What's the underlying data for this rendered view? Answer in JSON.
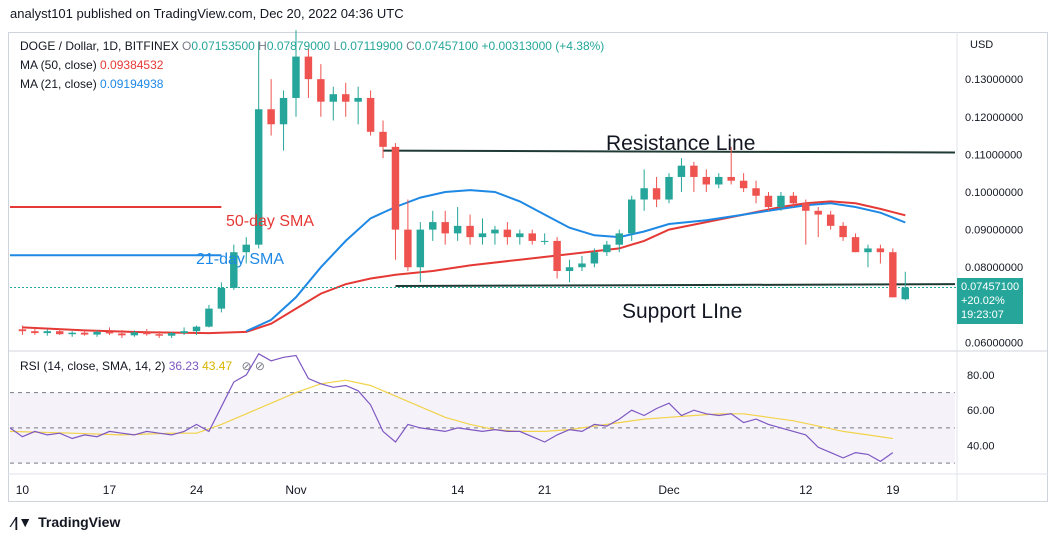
{
  "header": {
    "publish_line": "analyst101 published on TradingView.com, Dec 20, 2022 04:36 UTC"
  },
  "legend": {
    "symbol": "DOGE / Dollar, 1D, BITFINEX",
    "o_label": "O",
    "o_value": "0.07153500",
    "h_label": "H",
    "h_value": "0.07879000",
    "l_label": "L",
    "l_value": "0.07119900",
    "c_label": "C",
    "c_value": "0.07457100",
    "change": "+0.00313000 (+4.38%)",
    "ma50_label": "MA (50, close)",
    "ma50_value": "0.09384532",
    "ma21_label": "MA (21, close)",
    "ma21_value": "0.09194938"
  },
  "rsi_legend": {
    "label": "RSI (14, close, SMA, 14, 2)",
    "value": "36.23",
    "sma_value": "43.47"
  },
  "price_tag": {
    "price": "0.07457100",
    "change": "+20.02%",
    "countdown": "19:23:07"
  },
  "annotations": {
    "resistance": "Resistance Line",
    "support": "Support LIne",
    "sma50": "50-day SMA",
    "sma21": "21-day SMA"
  },
  "footer": {
    "brand": "TradingView"
  },
  "colors": {
    "up": "#26a69a",
    "down": "#ef5350",
    "ma50": "#e53935",
    "ma21": "#1e88e5",
    "rsi": "#7e57c2",
    "rsi_sma": "#f2d34b"
  },
  "chart_data": [
    {
      "type": "candlestick",
      "title": "DOGE / Dollar, 1D, BITFINEX",
      "currency_label": "USD",
      "y_ticks": [
        "0.13000000",
        "0.12000000",
        "0.11000000",
        "0.10000000",
        "0.09000000",
        "0.08000000",
        "0.06000000"
      ],
      "ylim": [
        0.058,
        0.142
      ],
      "x_ticks": [
        {
          "label": "10",
          "index": 0
        },
        {
          "label": "17",
          "index": 7
        },
        {
          "label": "24",
          "index": 14
        },
        {
          "label": "Nov",
          "index": 22
        },
        {
          "label": "14",
          "index": 35
        },
        {
          "label": "21",
          "index": 42
        },
        {
          "label": "Dec",
          "index": 52
        },
        {
          "label": "12",
          "index": 63
        },
        {
          "label": "19",
          "index": 70
        }
      ],
      "x_range": [
        -1,
        75
      ],
      "candles": [
        [
          0.0635,
          0.0645,
          0.062,
          0.063
        ],
        [
          0.063,
          0.0638,
          0.062,
          0.0625
        ],
        [
          0.0625,
          0.0635,
          0.0618,
          0.063
        ],
        [
          0.063,
          0.0636,
          0.062,
          0.0622
        ],
        [
          0.0622,
          0.063,
          0.0615,
          0.0626
        ],
        [
          0.0626,
          0.0633,
          0.0618,
          0.0621
        ],
        [
          0.0621,
          0.0632,
          0.0615,
          0.0628
        ],
        [
          0.0628,
          0.064,
          0.062,
          0.0624
        ],
        [
          0.0624,
          0.0633,
          0.0612,
          0.0619
        ],
        [
          0.0619,
          0.0632,
          0.0615,
          0.0627
        ],
        [
          0.0627,
          0.0636,
          0.0618,
          0.0622
        ],
        [
          0.0622,
          0.063,
          0.0612,
          0.0618
        ],
        [
          0.0618,
          0.0628,
          0.0612,
          0.0625
        ],
        [
          0.0625,
          0.064,
          0.062,
          0.063
        ],
        [
          0.063,
          0.0645,
          0.062,
          0.0642
        ],
        [
          0.0642,
          0.07,
          0.064,
          0.069
        ],
        [
          0.069,
          0.076,
          0.068,
          0.0745
        ],
        [
          0.0745,
          0.086,
          0.074,
          0.084
        ],
        [
          0.084,
          0.088,
          0.081,
          0.086
        ],
        [
          0.086,
          0.14,
          0.085,
          0.122
        ],
        [
          0.122,
          0.13,
          0.115,
          0.118
        ],
        [
          0.118,
          0.127,
          0.111,
          0.125
        ],
        [
          0.125,
          0.143,
          0.12,
          0.136
        ],
        [
          0.136,
          0.138,
          0.125,
          0.13
        ],
        [
          0.13,
          0.134,
          0.12,
          0.124
        ],
        [
          0.124,
          0.128,
          0.119,
          0.126
        ],
        [
          0.126,
          0.129,
          0.12,
          0.124
        ],
        [
          0.124,
          0.128,
          0.118,
          0.125
        ],
        [
          0.125,
          0.127,
          0.115,
          0.116
        ],
        [
          0.116,
          0.119,
          0.109,
          0.112
        ],
        [
          0.112,
          0.113,
          0.082,
          0.09
        ],
        [
          0.09,
          0.098,
          0.079,
          0.08
        ],
        [
          0.08,
          0.092,
          0.076,
          0.09
        ],
        [
          0.09,
          0.095,
          0.087,
          0.092
        ],
        [
          0.092,
          0.095,
          0.086,
          0.089
        ],
        [
          0.089,
          0.096,
          0.087,
          0.091
        ],
        [
          0.091,
          0.094,
          0.086,
          0.088
        ],
        [
          0.088,
          0.093,
          0.086,
          0.089
        ],
        [
          0.089,
          0.091,
          0.086,
          0.09
        ],
        [
          0.09,
          0.092,
          0.086,
          0.088
        ],
        [
          0.088,
          0.09,
          0.086,
          0.089
        ],
        [
          0.089,
          0.09,
          0.086,
          0.087
        ],
        [
          0.087,
          0.089,
          0.086,
          0.087
        ],
        [
          0.087,
          0.088,
          0.077,
          0.079
        ],
        [
          0.079,
          0.082,
          0.076,
          0.08
        ],
        [
          0.08,
          0.083,
          0.079,
          0.081
        ],
        [
          0.081,
          0.085,
          0.08,
          0.084
        ],
        [
          0.084,
          0.087,
          0.083,
          0.086
        ],
        [
          0.086,
          0.09,
          0.084,
          0.089
        ],
        [
          0.089,
          0.099,
          0.087,
          0.098
        ],
        [
          0.098,
          0.106,
          0.095,
          0.101
        ],
        [
          0.101,
          0.104,
          0.096,
          0.098
        ],
        [
          0.098,
          0.105,
          0.097,
          0.104
        ],
        [
          0.104,
          0.109,
          0.1,
          0.107
        ],
        [
          0.107,
          0.108,
          0.1,
          0.104
        ],
        [
          0.104,
          0.106,
          0.1,
          0.102
        ],
        [
          0.102,
          0.105,
          0.101,
          0.104
        ],
        [
          0.104,
          0.112,
          0.102,
          0.103
        ],
        [
          0.103,
          0.105,
          0.1,
          0.101
        ],
        [
          0.101,
          0.103,
          0.097,
          0.099
        ],
        [
          0.099,
          0.1,
          0.095,
          0.096
        ],
        [
          0.096,
          0.1,
          0.095,
          0.099
        ],
        [
          0.099,
          0.1,
          0.096,
          0.097
        ],
        [
          0.097,
          0.098,
          0.086,
          0.095
        ],
        [
          0.095,
          0.096,
          0.088,
          0.094
        ],
        [
          0.094,
          0.095,
          0.09,
          0.091
        ],
        [
          0.091,
          0.092,
          0.087,
          0.088
        ],
        [
          0.088,
          0.089,
          0.084,
          0.084
        ],
        [
          0.084,
          0.086,
          0.08,
          0.085
        ],
        [
          0.085,
          0.086,
          0.081,
          0.084
        ],
        [
          0.084,
          0.085,
          0.072,
          0.072
        ],
        [
          0.0715,
          0.0788,
          0.0712,
          0.0746
        ]
      ],
      "ma50": [
        [
          0,
          0.064
        ],
        [
          5,
          0.0632
        ],
        [
          10,
          0.0627
        ],
        [
          15,
          0.0625
        ],
        [
          18,
          0.0628
        ],
        [
          20,
          0.065
        ],
        [
          22,
          0.069
        ],
        [
          24,
          0.073
        ],
        [
          26,
          0.0755
        ],
        [
          28,
          0.077
        ],
        [
          30,
          0.078
        ],
        [
          33,
          0.079
        ],
        [
          36,
          0.0805
        ],
        [
          40,
          0.082
        ],
        [
          44,
          0.0835
        ],
        [
          48,
          0.085
        ],
        [
          50,
          0.087
        ],
        [
          52,
          0.09
        ],
        [
          55,
          0.092
        ],
        [
          58,
          0.094
        ],
        [
          61,
          0.096
        ],
        [
          63,
          0.097
        ],
        [
          65,
          0.0975
        ],
        [
          67,
          0.097
        ],
        [
          69,
          0.0955
        ],
        [
          71,
          0.0938
        ]
      ],
      "ma21": [
        [
          18,
          0.063
        ],
        [
          20,
          0.066
        ],
        [
          22,
          0.072
        ],
        [
          24,
          0.08
        ],
        [
          26,
          0.087
        ],
        [
          28,
          0.093
        ],
        [
          30,
          0.096
        ],
        [
          32,
          0.0985
        ],
        [
          34,
          0.1
        ],
        [
          36,
          0.1005
        ],
        [
          38,
          0.1
        ],
        [
          40,
          0.0975
        ],
        [
          42,
          0.094
        ],
        [
          44,
          0.0905
        ],
        [
          46,
          0.0885
        ],
        [
          48,
          0.088
        ],
        [
          50,
          0.0895
        ],
        [
          52,
          0.0915
        ],
        [
          55,
          0.0925
        ],
        [
          58,
          0.094
        ],
        [
          61,
          0.0955
        ],
        [
          63,
          0.0965
        ],
        [
          65,
          0.097
        ],
        [
          67,
          0.096
        ],
        [
          69,
          0.0945
        ],
        [
          71,
          0.0919
        ]
      ],
      "resistance_line": {
        "from": [
          29,
          0.111
        ],
        "to": [
          75,
          0.1105
        ]
      },
      "support_line": {
        "from": [
          30,
          0.075
        ],
        "to": [
          75,
          0.0755
        ]
      },
      "prev_ma50_level": 0.096,
      "prev_ma21_level": 0.0832
    },
    {
      "type": "line",
      "title": "RSI (14, close, SMA, 14, 2)",
      "y_ticks": [
        "80.00",
        "60.00",
        "40.00"
      ],
      "ylim": [
        25,
        93
      ],
      "band": [
        30,
        70
      ],
      "mid": 50,
      "rsi": [
        [
          -1,
          50
        ],
        [
          0,
          45
        ],
        [
          1,
          48
        ],
        [
          2,
          46
        ],
        [
          3,
          47
        ],
        [
          4,
          44
        ],
        [
          5,
          46
        ],
        [
          6,
          45
        ],
        [
          7,
          48
        ],
        [
          8,
          47
        ],
        [
          9,
          46
        ],
        [
          10,
          48
        ],
        [
          11,
          47
        ],
        [
          12,
          46
        ],
        [
          13,
          48
        ],
        [
          14,
          52
        ],
        [
          15,
          48
        ],
        [
          16,
          62
        ],
        [
          17,
          76
        ],
        [
          18,
          80
        ],
        [
          19,
          92
        ],
        [
          20,
          88
        ],
        [
          21,
          90
        ],
        [
          22,
          91
        ],
        [
          23,
          78
        ],
        [
          24,
          75
        ],
        [
          25,
          73
        ],
        [
          26,
          74
        ],
        [
          27,
          71
        ],
        [
          28,
          63
        ],
        [
          29,
          48
        ],
        [
          30,
          42
        ],
        [
          31,
          52
        ],
        [
          32,
          50
        ],
        [
          33,
          49
        ],
        [
          34,
          48
        ],
        [
          35,
          50
        ],
        [
          36,
          49
        ],
        [
          37,
          48
        ],
        [
          38,
          49
        ],
        [
          39,
          48
        ],
        [
          40,
          48
        ],
        [
          41,
          45
        ],
        [
          42,
          42
        ],
        [
          43,
          46
        ],
        [
          44,
          49
        ],
        [
          45,
          48
        ],
        [
          46,
          52
        ],
        [
          47,
          51
        ],
        [
          48,
          55
        ],
        [
          49,
          60
        ],
        [
          50,
          57
        ],
        [
          51,
          61
        ],
        [
          52,
          64
        ],
        [
          53,
          57
        ],
        [
          54,
          60
        ],
        [
          55,
          58
        ],
        [
          56,
          57
        ],
        [
          57,
          58
        ],
        [
          58,
          53
        ],
        [
          59,
          55
        ],
        [
          60,
          52
        ],
        [
          61,
          50
        ],
        [
          62,
          48
        ],
        [
          63,
          46
        ],
        [
          64,
          39
        ],
        [
          65,
          36
        ],
        [
          66,
          33
        ],
        [
          67,
          36
        ],
        [
          68,
          35
        ],
        [
          69,
          31
        ],
        [
          70,
          36
        ]
      ],
      "rsi_sma": [
        [
          -1,
          48
        ],
        [
          4,
          47
        ],
        [
          8,
          46
        ],
        [
          12,
          47
        ],
        [
          14,
          47
        ],
        [
          16,
          52
        ],
        [
          18,
          58
        ],
        [
          20,
          64
        ],
        [
          22,
          70
        ],
        [
          24,
          75
        ],
        [
          26,
          77
        ],
        [
          28,
          74
        ],
        [
          30,
          68
        ],
        [
          32,
          62
        ],
        [
          34,
          56
        ],
        [
          36,
          52
        ],
        [
          38,
          49
        ],
        [
          40,
          48
        ],
        [
          42,
          48
        ],
        [
          44,
          49
        ],
        [
          46,
          51
        ],
        [
          48,
          53
        ],
        [
          50,
          55
        ],
        [
          52,
          56
        ],
        [
          54,
          57
        ],
        [
          56,
          58
        ],
        [
          58,
          58
        ],
        [
          60,
          56
        ],
        [
          62,
          54
        ],
        [
          64,
          51
        ],
        [
          66,
          48
        ],
        [
          68,
          46
        ],
        [
          70,
          44
        ]
      ]
    }
  ]
}
